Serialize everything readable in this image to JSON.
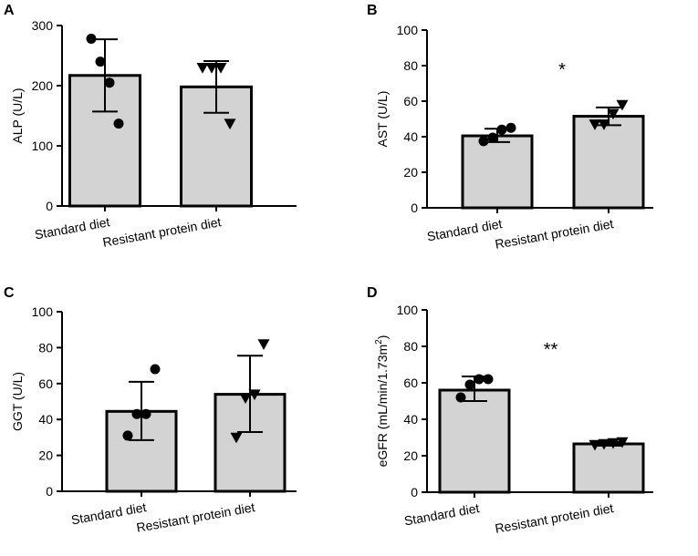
{
  "figure": {
    "colors": {
      "bar_fill": "#d3d3d3",
      "stroke": "#000000",
      "background": "#ffffff"
    }
  },
  "chart_data": [
    {
      "panel": "A",
      "type": "bar",
      "categories": [
        "Standard diet",
        "Resistant protein diet"
      ],
      "values": [
        217,
        198
      ],
      "error": [
        [
          157,
          277
        ],
        [
          155,
          241
        ]
      ],
      "points": [
        [
          278,
          240,
          205,
          137
        ],
        [
          230,
          230,
          230,
          137
        ]
      ],
      "markers": [
        "circle",
        "triangle-down"
      ],
      "ylabel": "ALP (U/L)",
      "ylim": [
        0,
        300
      ],
      "yticks": [
        0,
        100,
        200,
        300
      ],
      "significance": ""
    },
    {
      "panel": "B",
      "type": "bar",
      "categories": [
        "Standard diet",
        "Resistant protein diet"
      ],
      "values": [
        40.5,
        51.5
      ],
      "error": [
        [
          37,
          44.5
        ],
        [
          46.5,
          56.5
        ]
      ],
      "points": [
        [
          37.5,
          39.5,
          44,
          45
        ],
        [
          47,
          47,
          53,
          58
        ]
      ],
      "markers": [
        "circle",
        "triangle-down"
      ],
      "ylabel": "AST (U/L)",
      "ylim": [
        0,
        100
      ],
      "yticks": [
        0,
        20,
        40,
        60,
        80,
        100
      ],
      "significance": "*"
    },
    {
      "panel": "C",
      "type": "bar",
      "categories": [
        "Standard diet",
        "Resistant protein diet"
      ],
      "values": [
        44.5,
        54
      ],
      "error": [
        [
          28.5,
          61
        ],
        [
          33,
          75.5
        ]
      ],
      "points": [
        [
          31,
          43,
          43,
          68
        ],
        [
          30,
          52,
          54,
          82
        ]
      ],
      "markers": [
        "circle",
        "triangle-down"
      ],
      "ylabel": "GGT (U/L)",
      "ylim": [
        0,
        100
      ],
      "yticks": [
        0,
        20,
        40,
        60,
        80,
        100
      ],
      "significance": ""
    },
    {
      "panel": "D",
      "type": "bar",
      "categories": [
        "Standard diet",
        "Resistant protein diet"
      ],
      "values": [
        56,
        26.5
      ],
      "error": [
        [
          50,
          63.5
        ],
        [
          25.5,
          27.5
        ]
      ],
      "points": [
        [
          52,
          59,
          62,
          62
        ],
        [
          26,
          26.5,
          27,
          27.5
        ]
      ],
      "markers": [
        "circle",
        "triangle-down"
      ],
      "ylabel": "eGFR (mL/min/1.73m",
      "ylabel_superscript": "2",
      "ylabel_suffix": ")",
      "ylim": [
        0,
        100
      ],
      "yticks": [
        0,
        20,
        40,
        60,
        80,
        100
      ],
      "significance": "**"
    }
  ]
}
